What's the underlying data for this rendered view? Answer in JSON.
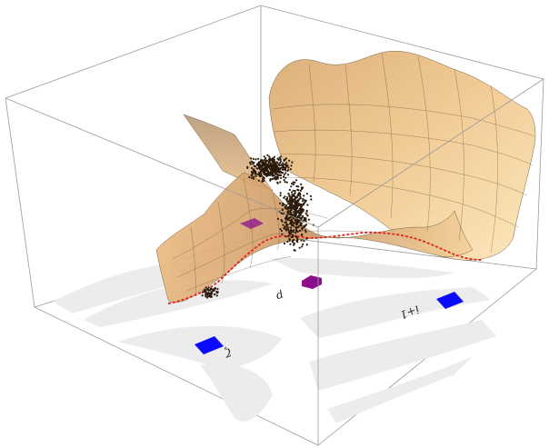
{
  "labels": {
    "minimum_a": "ζ",
    "saddle": "p",
    "minimum_b": "i+1"
  },
  "colors": {
    "surface_light": "#fde6b8",
    "surface_mid": "#efc58b",
    "surface_dark": "#c28d57",
    "surface_mesh": "#6b5236",
    "floor_band": "#ececec",
    "minimum_marker": "#0a0aff",
    "saddle_marker": "#8b0f8b",
    "path_curve": "#e0241b",
    "sample_points": "#2a1a0a",
    "box_edges": "#9a9a9a"
  }
}
